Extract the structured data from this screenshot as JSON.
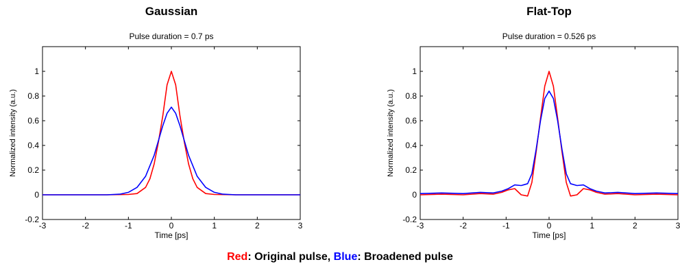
{
  "caption": {
    "red_word": "Red",
    "middle": ": Original pulse, ",
    "blue_word": "Blue",
    "end": ": Broadened pulse",
    "red_color": "#ff0000",
    "blue_color": "#0000ff"
  },
  "chart_data": [
    {
      "type": "line",
      "title": "Gaussian",
      "subtitle": "Pulse duration = 0.7 ps",
      "xlabel": "Time [ps]",
      "ylabel": "Normalized intensity (a.u.)",
      "xlim": [
        -3,
        3
      ],
      "ylim": [
        -0.2,
        1.2
      ],
      "xticks": [
        -3,
        -2,
        -1,
        0,
        1,
        2,
        3
      ],
      "yticks": [
        -0.2,
        0,
        0.2,
        0.4,
        0.6,
        0.8,
        1
      ],
      "ytick_labels": [
        "-0.2",
        "0",
        "0.2",
        "0.4",
        "0.6",
        "0.8",
        "1"
      ],
      "grid": false,
      "series": [
        {
          "color": "#ff0000",
          "x": [
            -3,
            -1.5,
            -1,
            -0.8,
            -0.6,
            -0.5,
            -0.4,
            -0.3,
            -0.2,
            -0.1,
            0,
            0.1,
            0.2,
            0.3,
            0.4,
            0.5,
            0.6,
            0.8,
            1,
            1.5,
            3
          ],
          "y": [
            0,
            0,
            0.003,
            0.01,
            0.06,
            0.13,
            0.25,
            0.43,
            0.64,
            0.89,
            1.0,
            0.89,
            0.64,
            0.43,
            0.25,
            0.13,
            0.06,
            0.01,
            0.003,
            0,
            0
          ]
        },
        {
          "color": "#0000ff",
          "x": [
            -3,
            -1.5,
            -1.2,
            -1,
            -0.8,
            -0.6,
            -0.4,
            -0.3,
            -0.2,
            -0.1,
            0,
            0.1,
            0.2,
            0.3,
            0.4,
            0.6,
            0.8,
            1,
            1.2,
            1.5,
            3
          ],
          "y": [
            0,
            0,
            0.005,
            0.02,
            0.06,
            0.15,
            0.32,
            0.44,
            0.56,
            0.66,
            0.71,
            0.66,
            0.56,
            0.44,
            0.32,
            0.15,
            0.06,
            0.02,
            0.005,
            0,
            0
          ]
        }
      ]
    },
    {
      "type": "line",
      "title": "Flat-Top",
      "subtitle": "Pulse duration = 0.526 ps",
      "xlabel": "Time [ps]",
      "ylabel": "Normalized intensity (a.u.)",
      "xlim": [
        -3,
        3
      ],
      "ylim": [
        -0.2,
        1.2
      ],
      "xticks": [
        -3,
        -2,
        -1,
        0,
        1,
        2,
        3
      ],
      "yticks": [
        -0.2,
        0,
        0.2,
        0.4,
        0.6,
        0.8,
        1
      ],
      "ytick_labels": [
        "-0.2",
        "0",
        "0.2",
        "0.4",
        "0.6",
        "0.8",
        "1"
      ],
      "grid": false,
      "series": [
        {
          "color": "#ff0000",
          "x": [
            -3,
            -2.5,
            -2,
            -1.6,
            -1.3,
            -1.1,
            -0.95,
            -0.8,
            -0.65,
            -0.5,
            -0.4,
            -0.3,
            -0.2,
            -0.1,
            0,
            0.1,
            0.2,
            0.3,
            0.4,
            0.5,
            0.65,
            0.8,
            0.95,
            1.1,
            1.3,
            1.6,
            2,
            2.5,
            3
          ],
          "y": [
            0,
            0.005,
            0,
            0.01,
            0.005,
            0.02,
            0.04,
            0.05,
            0.0,
            -0.01,
            0.1,
            0.35,
            0.62,
            0.88,
            1.0,
            0.88,
            0.62,
            0.35,
            0.1,
            -0.01,
            0.0,
            0.05,
            0.04,
            0.02,
            0.005,
            0.01,
            0,
            0.005,
            0
          ]
        },
        {
          "color": "#0000ff",
          "x": [
            -3,
            -2.5,
            -2,
            -1.6,
            -1.3,
            -1.1,
            -0.95,
            -0.8,
            -0.65,
            -0.5,
            -0.4,
            -0.3,
            -0.2,
            -0.1,
            0,
            0.1,
            0.2,
            0.3,
            0.4,
            0.5,
            0.65,
            0.8,
            0.95,
            1.1,
            1.3,
            1.6,
            2,
            2.5,
            3
          ],
          "y": [
            0.01,
            0.015,
            0.01,
            0.02,
            0.015,
            0.03,
            0.05,
            0.08,
            0.075,
            0.09,
            0.17,
            0.37,
            0.6,
            0.78,
            0.84,
            0.78,
            0.6,
            0.37,
            0.17,
            0.09,
            0.075,
            0.08,
            0.05,
            0.03,
            0.015,
            0.02,
            0.01,
            0.015,
            0.01
          ]
        }
      ]
    }
  ]
}
